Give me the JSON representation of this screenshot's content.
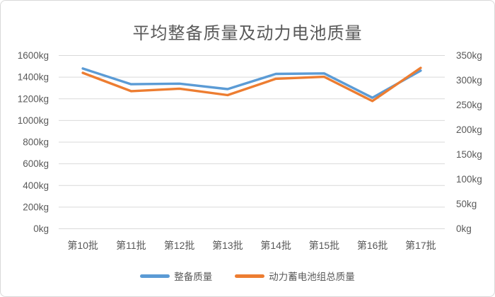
{
  "chart_data": {
    "type": "line",
    "title": "平均整备质量及动力电池质量",
    "categories": [
      "第10批",
      "第11批",
      "第12批",
      "第13批",
      "第14批",
      "第15批",
      "第16批",
      "第17批"
    ],
    "series": [
      {
        "name": "整备质量",
        "axis": "left",
        "color": "#5B9BD5",
        "values": [
          1480,
          1335,
          1340,
          1290,
          1430,
          1435,
          1210,
          1460
        ]
      },
      {
        "name": "动力蓄电池组总质量",
        "axis": "right",
        "color": "#ED7D31",
        "values": [
          315,
          278,
          283,
          270,
          303,
          307,
          258,
          325
        ]
      }
    ],
    "left_axis": {
      "min": 0,
      "max": 1600,
      "step": 200,
      "suffix": "kg",
      "tick_labels": [
        "0kg",
        "200kg",
        "400kg",
        "600kg",
        "800kg",
        "1000kg",
        "1200kg",
        "1400kg",
        "1600kg"
      ]
    },
    "right_axis": {
      "min": 0,
      "max": 350,
      "step": 50,
      "suffix": "kg",
      "tick_labels": [
        "0kg",
        "50kg",
        "100kg",
        "150kg",
        "200kg",
        "250kg",
        "300kg",
        "350kg"
      ]
    },
    "grid": "horizontal",
    "legend_position": "bottom",
    "colors": {
      "series1": "#5B9BD5",
      "series2": "#ED7D31",
      "gridline": "#D9D9D9",
      "text": "#595959",
      "border": "#D9D9D9",
      "background": "#FFFFFF"
    }
  }
}
